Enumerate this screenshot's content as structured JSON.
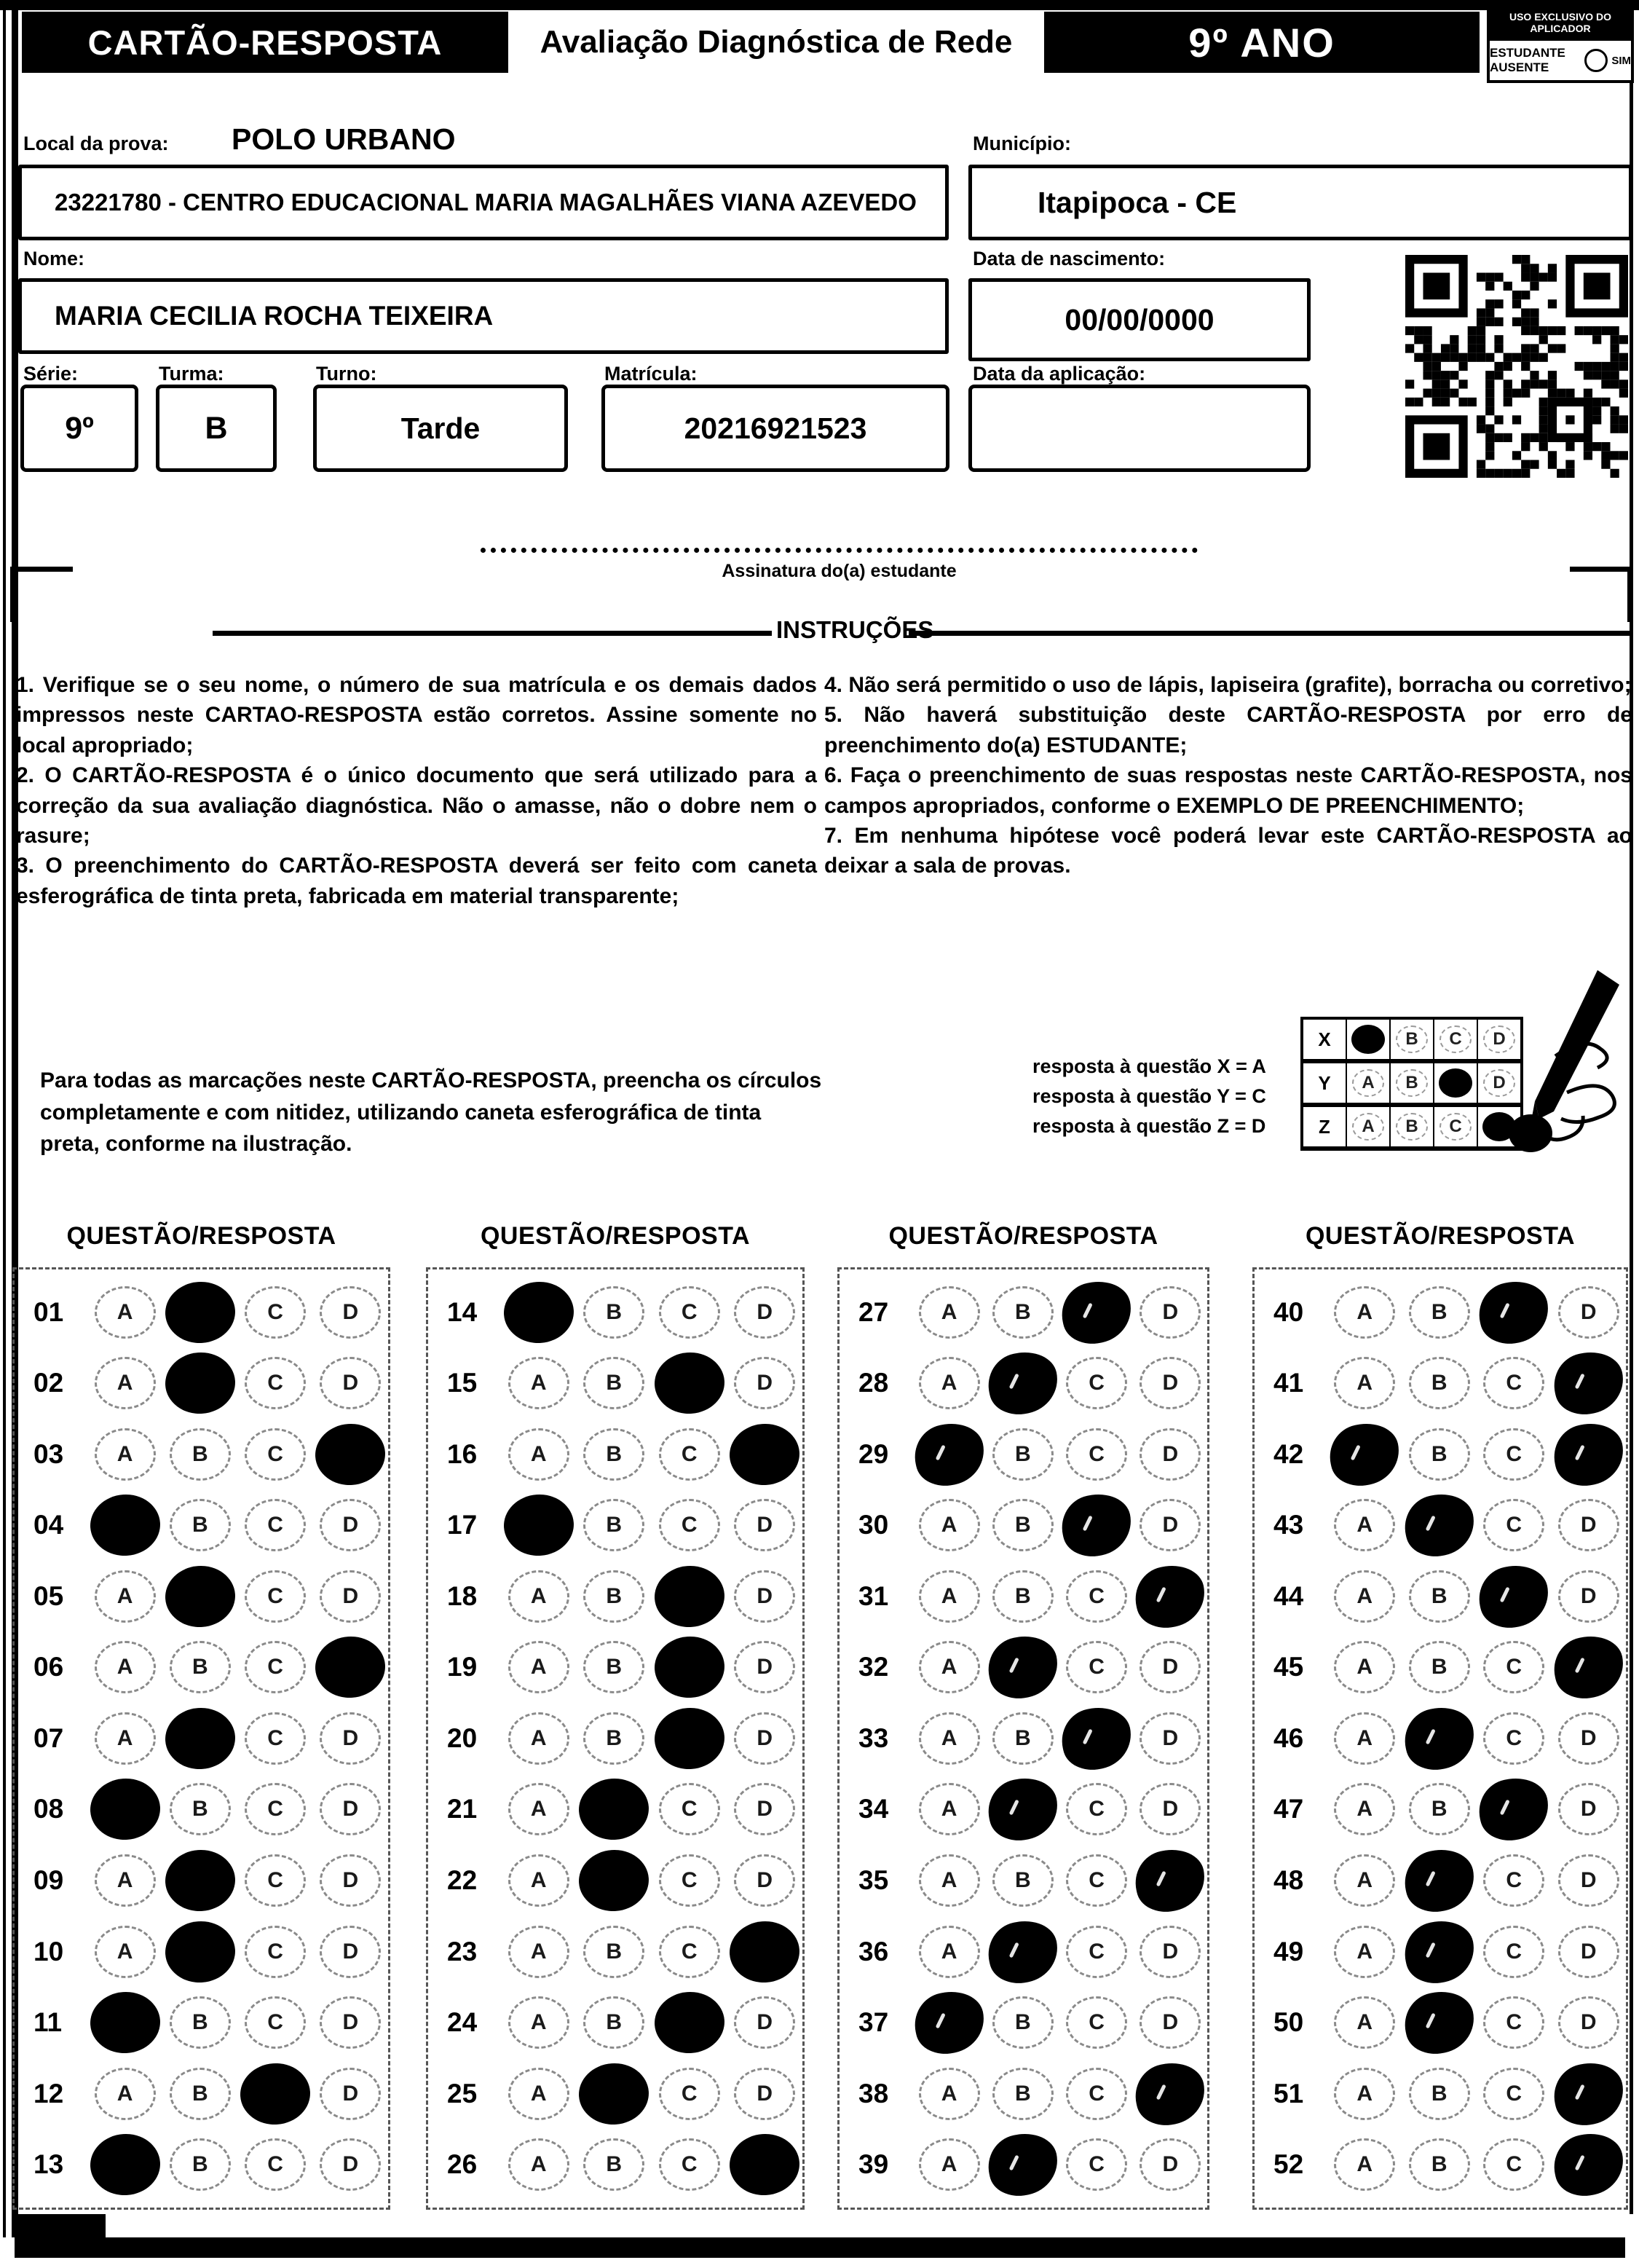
{
  "page": {
    "title_left": "CARTÃO-RESPOSTA",
    "title_center": "Avaliação Diagnóstica de Rede",
    "title_grade": "9º ANO",
    "aplicador_header": "USO EXCLUSIVO DO APLICADOR",
    "absent_label": "ESTUDANTE AUSENTE",
    "absent_option": "SIM"
  },
  "form": {
    "local_label": "Local da prova:",
    "local_value": "POLO URBANO",
    "school_value": "23221780 - CENTRO EDUCACIONAL MARIA MAGALHÃES VIANA AZEVEDO",
    "municipio_label": "Município:",
    "municipio_value": "Itapipoca - CE",
    "nome_label": "Nome:",
    "nome_value": "MARIA CECILIA ROCHA TEIXEIRA",
    "nascimento_label": "Data de nascimento:",
    "nascimento_value": "00/00/0000",
    "serie_label": "Série:",
    "serie_value": "9º",
    "turma_label": "Turma:",
    "turma_value": "B",
    "turno_label": "Turno:",
    "turno_value": "Tarde",
    "matricula_label": "Matrícula:",
    "matricula_value": "20216921523",
    "aplicacao_label": "Data da aplicação:",
    "aplicacao_value": "",
    "qr_icon": "qr-code"
  },
  "signature": {
    "label": "Assinatura do(a) estudante"
  },
  "instructions": {
    "title": "INSTRUÇÕES",
    "left": [
      "1. Verifique se o seu nome, o número de sua matrícula e os demais dados impressos neste CARTAO-RESPOSTA estão corretos. Assine somente no local apropriado;",
      "2. O CARTÃO-RESPOSTA é o único documento que será utilizado para a correção da sua avaliação diagnóstica. Não o amasse, não o dobre nem o rasure;",
      "3. O preenchimento do CARTÃO-RESPOSTA deverá ser feito com caneta esferográfica de tinta preta, fabricada em material transparente;"
    ],
    "right": [
      "4. Não será permitido o uso de lápis, lapiseira (grafite), borracha ou corretivo;",
      "5. Não haverá substituição deste CARTÃO-RESPOSTA por erro de preenchimento do(a) ESTUDANTE;",
      "6. Faça o preenchimento de suas respostas neste CARTÃO-RESPOSTA, nos campos apropriados, conforme o EXEMPLO DE PREENCHIMENTO;",
      "7. Em nenhuma hipótese você poderá levar este CARTÃO-RESPOSTA ao deixar a sala de provas."
    ]
  },
  "example": {
    "paragraph": "Para todas as marcações neste CARTÃO-RESPOSTA, preencha os círculos completamente e com nitidez, utilizando caneta esferográfica de tinta preta, conforme na ilustração.",
    "legend": [
      "resposta à questão X = A",
      "resposta à questão Y = C",
      "resposta à questão Z = D"
    ],
    "options": [
      "A",
      "B",
      "C",
      "D"
    ],
    "grid": [
      {
        "label": "X",
        "marked": "A"
      },
      {
        "label": "Y",
        "marked": "C"
      },
      {
        "label": "Z",
        "marked": "D"
      }
    ],
    "pen_icon": "pen-hand-illustration"
  },
  "answers": {
    "header": "QUESTÃO/RESPOSTA",
    "options": [
      "A",
      "B",
      "C",
      "D"
    ],
    "ink_color": "#000000",
    "columns": [
      {
        "mark_style": "print",
        "items": [
          {
            "q": "01",
            "marked": [
              "B"
            ]
          },
          {
            "q": "02",
            "marked": [
              "B"
            ]
          },
          {
            "q": "03",
            "marked": [
              "D"
            ]
          },
          {
            "q": "04",
            "marked": [
              "A"
            ]
          },
          {
            "q": "05",
            "marked": [
              "B"
            ]
          },
          {
            "q": "06",
            "marked": [
              "D"
            ]
          },
          {
            "q": "07",
            "marked": [
              "B"
            ]
          },
          {
            "q": "08",
            "marked": [
              "A"
            ]
          },
          {
            "q": "09",
            "marked": [
              "B"
            ]
          },
          {
            "q": "10",
            "marked": [
              "B"
            ]
          },
          {
            "q": "11",
            "marked": [
              "A"
            ]
          },
          {
            "q": "12",
            "marked": [
              "C"
            ]
          },
          {
            "q": "13",
            "marked": [
              "A"
            ]
          }
        ]
      },
      {
        "mark_style": "print",
        "items": [
          {
            "q": "14",
            "marked": [
              "A"
            ]
          },
          {
            "q": "15",
            "marked": [
              "C"
            ]
          },
          {
            "q": "16",
            "marked": [
              "D"
            ]
          },
          {
            "q": "17",
            "marked": [
              "A"
            ]
          },
          {
            "q": "18",
            "marked": [
              "C"
            ]
          },
          {
            "q": "19",
            "marked": [
              "C"
            ]
          },
          {
            "q": "20",
            "marked": [
              "C"
            ]
          },
          {
            "q": "21",
            "marked": [
              "B"
            ]
          },
          {
            "q": "22",
            "marked": [
              "B"
            ]
          },
          {
            "q": "23",
            "marked": [
              "D"
            ]
          },
          {
            "q": "24",
            "marked": [
              "C"
            ]
          },
          {
            "q": "25",
            "marked": [
              "B"
            ]
          },
          {
            "q": "26",
            "marked": [
              "D"
            ]
          }
        ]
      },
      {
        "mark_style": "pen",
        "items": [
          {
            "q": "27",
            "marked": [
              "C"
            ]
          },
          {
            "q": "28",
            "marked": [
              "B"
            ]
          },
          {
            "q": "29",
            "marked": [
              "A"
            ]
          },
          {
            "q": "30",
            "marked": [
              "C"
            ]
          },
          {
            "q": "31",
            "marked": [
              "D"
            ]
          },
          {
            "q": "32",
            "marked": [
              "B"
            ]
          },
          {
            "q": "33",
            "marked": [
              "C"
            ]
          },
          {
            "q": "34",
            "marked": [
              "B"
            ]
          },
          {
            "q": "35",
            "marked": [
              "D"
            ]
          },
          {
            "q": "36",
            "marked": [
              "B"
            ]
          },
          {
            "q": "37",
            "marked": [
              "A"
            ]
          },
          {
            "q": "38",
            "marked": [
              "D"
            ]
          },
          {
            "q": "39",
            "marked": [
              "B"
            ]
          }
        ]
      },
      {
        "mark_style": "pen",
        "items": [
          {
            "q": "40",
            "marked": [
              "C"
            ]
          },
          {
            "q": "41",
            "marked": [
              "D"
            ]
          },
          {
            "q": "42",
            "marked": [
              "A",
              "D"
            ]
          },
          {
            "q": "43",
            "marked": [
              "B"
            ]
          },
          {
            "q": "44",
            "marked": [
              "C"
            ]
          },
          {
            "q": "45",
            "marked": [
              "D"
            ]
          },
          {
            "q": "46",
            "marked": [
              "B"
            ]
          },
          {
            "q": "47",
            "marked": [
              "C"
            ]
          },
          {
            "q": "48",
            "marked": [
              "B"
            ]
          },
          {
            "q": "49",
            "marked": [
              "B"
            ]
          },
          {
            "q": "50",
            "marked": [
              "B"
            ]
          },
          {
            "q": "51",
            "marked": [
              "D"
            ]
          },
          {
            "q": "52",
            "marked": [
              "D"
            ]
          }
        ]
      }
    ],
    "column_layout": {
      "lefts": [
        17,
        585,
        1150,
        1720
      ],
      "widths": [
        519,
        520,
        511,
        516
      ]
    }
  }
}
